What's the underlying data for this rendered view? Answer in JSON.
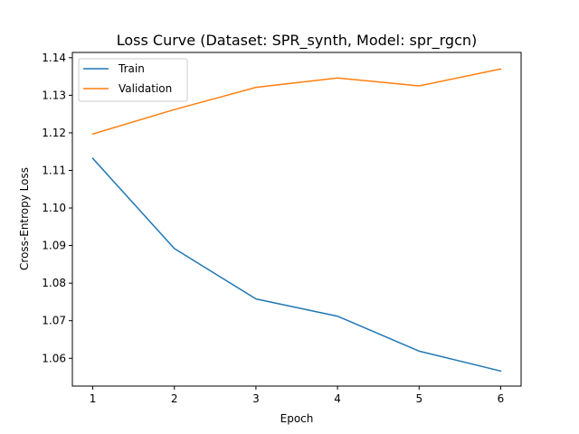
{
  "chart_data": {
    "type": "line",
    "title": "Loss Curve (Dataset: SPR_synth, Model: spr_rgcn)",
    "xlabel": "Epoch",
    "ylabel": "Cross-Entropy Loss",
    "x": [
      1,
      2,
      3,
      4,
      5,
      6
    ],
    "xlim": [
      0.75,
      6.25
    ],
    "ylim": [
      1.0526,
      1.1414
    ],
    "xticks": [
      1,
      2,
      3,
      4,
      5,
      6
    ],
    "yticks": [
      1.06,
      1.07,
      1.08,
      1.09,
      1.1,
      1.11,
      1.12,
      1.13,
      1.14
    ],
    "grid": false,
    "legend_position": "top-left",
    "series": [
      {
        "name": "Train",
        "color": "#1f77b4",
        "values": [
          1.1132,
          1.0892,
          1.0758,
          1.0712,
          1.0619,
          1.0566
        ]
      },
      {
        "name": "Validation",
        "color": "#ff7f0e",
        "values": [
          1.1197,
          1.1262,
          1.1321,
          1.1346,
          1.1325,
          1.137
        ]
      }
    ]
  }
}
